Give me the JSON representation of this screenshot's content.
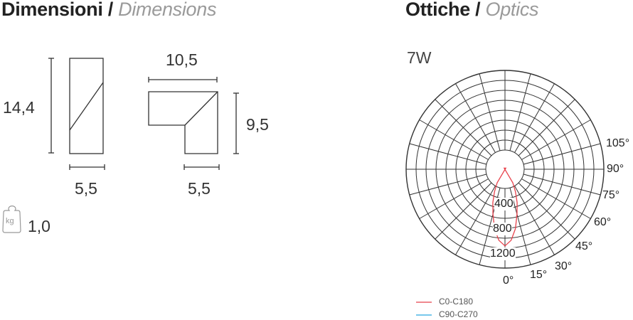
{
  "dimensions": {
    "title": "Dimensioni / ",
    "title_en": "Dimensions",
    "height_a": "14,4",
    "width_a": "5,5",
    "width_b": "10,5",
    "height_b": "9,5",
    "depth_b": "5,5",
    "weight_unit": "kg",
    "weight": "1,0",
    "weight_icon": "weight-kg-icon"
  },
  "optics": {
    "title": "Ottiche / ",
    "title_en": "Optics",
    "power": "7W"
  },
  "chart_data": {
    "type": "polar",
    "angle_labels": [
      "105°",
      "90°",
      "75°",
      "60°",
      "45°",
      "30°",
      "15°",
      "0°"
    ],
    "radial_labels": [
      "400",
      "800",
      "1200"
    ],
    "angular_step_deg": 15,
    "series": [
      {
        "name": "C0-C180",
        "color": "#e8414b",
        "angles": [
          0,
          5,
          10,
          15,
          20,
          25,
          30,
          35
        ],
        "values": [
          1080,
          990,
          810,
          580,
          400,
          220,
          70,
          0
        ]
      },
      {
        "name": "C90-C270",
        "color": "#29a8e0",
        "angles": [],
        "values": []
      }
    ]
  }
}
